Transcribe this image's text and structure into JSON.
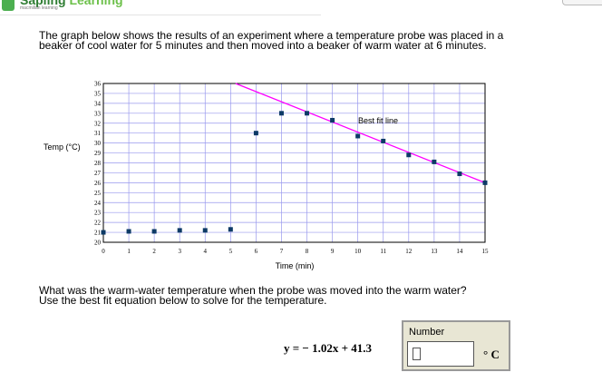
{
  "header": {
    "brand_part1": "Sapling ",
    "brand_part2": "Learning",
    "sub": "macmillan learning"
  },
  "intro": [
    "The graph below shows the results of an experiment where a temperature probe was placed in a",
    "beaker of cool water for 5 minutes and then moved into a beaker of warm water at 6 minutes."
  ],
  "question": [
    "What was the warm-water temperature when the probe was moved into the warm water?",
    "Use the best fit equation below to solve for the temperature."
  ],
  "equation": "y = − 1.02x + 41.3",
  "answer": {
    "label": "Number",
    "value": "",
    "unit": "° C"
  },
  "chart_data": {
    "type": "scatter",
    "xlabel": "Time (min)",
    "ylabel": "Temp (°C)",
    "xlim": [
      0,
      15
    ],
    "ylim": [
      20,
      36
    ],
    "grid": true,
    "x": [
      0,
      1,
      2,
      3,
      4,
      5,
      6,
      7,
      8,
      9,
      10,
      11,
      12,
      13,
      14,
      15
    ],
    "y": [
      21,
      21.1,
      21.1,
      21.2,
      21.2,
      21.3,
      31,
      33,
      33,
      32.3,
      30.7,
      30.2,
      28.8,
      28.1,
      26.9,
      26
    ],
    "fit_line": {
      "label": "Best fit line",
      "slope": -1.02,
      "intercept": 41.3,
      "color": "#ff00ff"
    },
    "marker_color": "#0d3a66",
    "grid_color": "#9999ee"
  }
}
